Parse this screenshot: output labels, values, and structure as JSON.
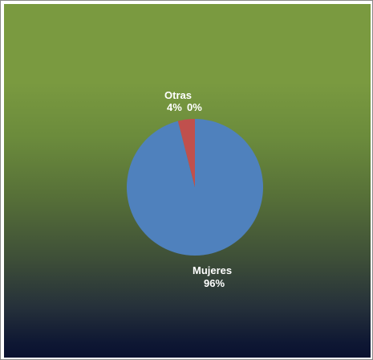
{
  "chart_data": {
    "type": "pie",
    "categories": [
      "Mujeres",
      "Otras",
      ""
    ],
    "values": [
      96,
      4,
      0
    ],
    "value_labels": [
      "96%",
      "4%",
      "0%"
    ],
    "colors": [
      "#4f81bd",
      "#c0504d",
      "#9bbb59"
    ],
    "title": "",
    "background": "green-to-navy vertical gradient",
    "data_label_color": "#ffffff"
  }
}
